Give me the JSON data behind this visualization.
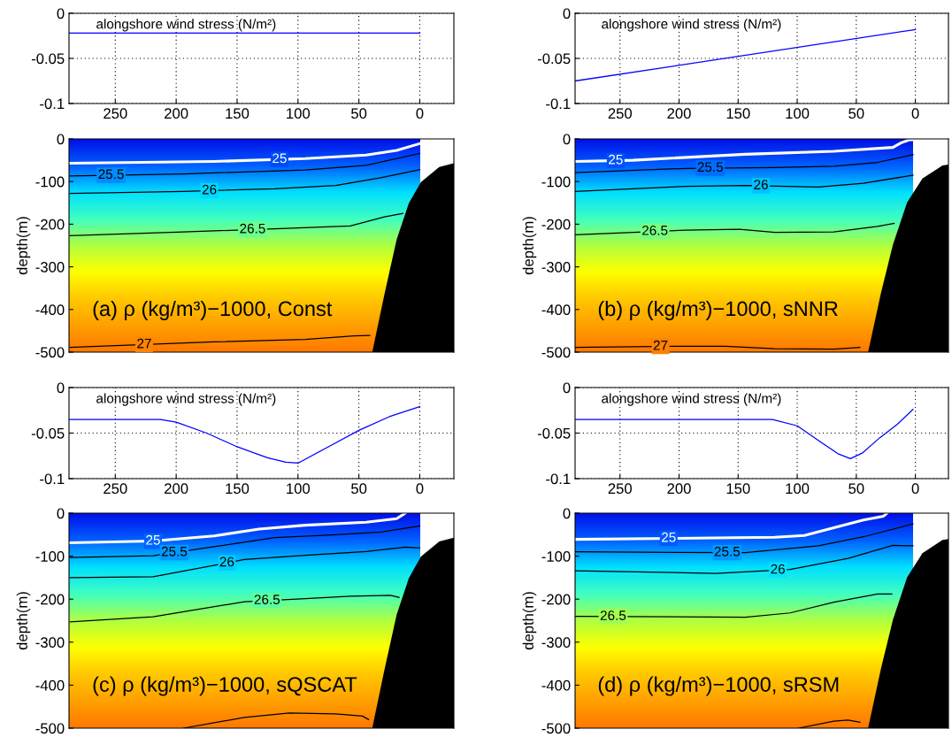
{
  "chart_data": [
    {
      "type": "line",
      "x": [
        288,
        0
      ],
      "xlim": [
        288,
        -28
      ],
      "ylim": [
        -0.1,
        0
      ],
      "xticks": [
        250,
        200,
        150,
        100,
        50,
        0
      ],
      "yticks": [
        -0.1,
        -0.05,
        0
      ],
      "grid": true,
      "annotations": [
        "alongshore wind stress (N/m²)"
      ],
      "series": [
        {
          "color": "#0000ff",
          "values": [
            -0.022,
            -0.022
          ]
        }
      ]
    },
    {
      "type": "line",
      "x": [
        288,
        0
      ],
      "xlim": [
        288,
        -28
      ],
      "ylim": [
        -0.1,
        0
      ],
      "xticks": [
        250,
        200,
        150,
        100,
        50,
        0
      ],
      "yticks": [
        -0.1,
        -0.05,
        0
      ],
      "grid": true,
      "annotations": [
        "alongshore wind stress (N/m²)"
      ],
      "series": [
        {
          "color": "#0000ff",
          "values": [
            -0.075,
            -0.018
          ]
        }
      ]
    },
    {
      "type": "line",
      "xlim": [
        288,
        -28
      ],
      "ylim": [
        -500,
        0
      ],
      "yticks": [
        -500,
        -400,
        -300,
        -200,
        -100,
        0
      ],
      "ylabel": "depth(m)",
      "tick_labels": "y",
      "annotations": [
        "(a) ρ (kg/m³)−1000, Const"
      ],
      "series": [
        {
          "name": "25",
          "color": "#ffffff",
          "x": [
            287,
            169,
            94,
            44,
            19,
            0
          ],
          "values": [
            -57,
            -53,
            -46,
            -38,
            -27,
            -11
          ]
        },
        {
          "name": "25.5",
          "color": "#000000",
          "x": [
            287,
            194,
            94,
            44,
            0
          ],
          "values": [
            -87,
            -82,
            -73,
            -62,
            -34
          ]
        },
        {
          "name": "26",
          "color": "#000000",
          "x": [
            287,
            194,
            119,
            69,
            32,
            0
          ],
          "values": [
            -128,
            -123,
            -117,
            -109,
            -91,
            -72
          ]
        },
        {
          "name": "26.5",
          "color": "#000000",
          "x": [
            287,
            194,
            119,
            57,
            29,
            14
          ],
          "values": [
            -227,
            -218,
            -211,
            -204,
            -183,
            -175
          ]
        },
        {
          "name": "27",
          "color": "#000000",
          "x": [
            287,
            169,
            94,
            54,
            41
          ],
          "values": [
            -489,
            -476,
            -470,
            -462,
            -461
          ]
        },
        {
          "type": "area",
          "color": "#000000",
          "x": [
            39,
            29,
            19,
            9,
            -1,
            -16,
            -28,
            -28
          ],
          "values": [
            -500,
            -364,
            -236,
            -151,
            -101,
            -66,
            -57,
            -500
          ]
        }
      ]
    },
    {
      "type": "line",
      "xlim": [
        288,
        -28
      ],
      "ylim": [
        -500,
        0
      ],
      "yticks": [
        -500,
        -400,
        -300,
        -200,
        -100,
        0
      ],
      "ylabel": "depth(m)",
      "tick_labels": "y",
      "annotations": [
        "(b) ρ (kg/m³)−1000, sNNR"
      ],
      "series": [
        {
          "name": "25",
          "color": "#ffffff",
          "x": [
            288,
            239,
            144,
            69,
            19,
            12,
            5,
            2
          ],
          "values": [
            -53,
            -50,
            -36,
            -29,
            -20,
            -9,
            -2,
            -2
          ]
        },
        {
          "name": "25.5",
          "color": "#000000",
          "x": [
            288,
            194,
            119,
            69,
            32,
            2
          ],
          "values": [
            -79,
            -69,
            -67,
            -64,
            -55,
            -37
          ]
        },
        {
          "name": "26",
          "color": "#000000",
          "x": [
            288,
            194,
            144,
            82,
            44,
            2
          ],
          "values": [
            -123,
            -111,
            -109,
            -113,
            -104,
            -85
          ]
        },
        {
          "name": "26.5",
          "color": "#000000",
          "x": [
            288,
            194,
            149,
            119,
            69,
            32,
            18
          ],
          "values": [
            -225,
            -214,
            -212,
            -219,
            -218,
            -205,
            -198
          ]
        },
        {
          "name": "27",
          "color": "#000000",
          "x": [
            288,
            194,
            161,
            119,
            69,
            47
          ],
          "values": [
            -489,
            -486,
            -486,
            -492,
            -493,
            -489
          ]
        },
        {
          "type": "area",
          "color": "#000000",
          "x": [
            40,
            29,
            19,
            7,
            -6,
            -23,
            -28,
            -28
          ],
          "values": [
            -500,
            -360,
            -248,
            -149,
            -93,
            -62,
            -60,
            -500
          ]
        }
      ]
    },
    {
      "type": "line",
      "x": [
        288,
        213,
        200,
        175,
        150,
        125,
        110,
        100,
        75,
        50,
        25,
        0
      ],
      "xlim": [
        288,
        -28
      ],
      "ylim": [
        -0.1,
        0
      ],
      "xticks": [
        250,
        200,
        150,
        100,
        50,
        0
      ],
      "yticks": [
        -0.1,
        -0.05,
        0
      ],
      "grid": true,
      "annotations": [
        "alongshore wind stress (N/m²)"
      ],
      "series": [
        {
          "color": "#0000ff",
          "values": [
            -0.035,
            -0.035,
            -0.038,
            -0.05,
            -0.065,
            -0.077,
            -0.082,
            -0.083,
            -0.065,
            -0.047,
            -0.032,
            -0.021
          ]
        }
      ]
    },
    {
      "type": "line",
      "x": [
        288,
        121,
        100,
        80,
        65,
        55,
        45,
        30,
        15,
        2
      ],
      "xlim": [
        288,
        -28
      ],
      "ylim": [
        -0.1,
        0
      ],
      "xticks": [
        250,
        200,
        150,
        100,
        50,
        0
      ],
      "yticks": [
        -0.1,
        -0.05,
        0
      ],
      "grid": true,
      "annotations": [
        "alongshore wind stress (N/m²)"
      ],
      "series": [
        {
          "color": "#0000ff",
          "values": [
            -0.035,
            -0.035,
            -0.042,
            -0.06,
            -0.073,
            -0.078,
            -0.072,
            -0.055,
            -0.04,
            -0.024
          ]
        }
      ]
    },
    {
      "type": "line",
      "xlim": [
        288,
        -28
      ],
      "ylim": [
        -500,
        0
      ],
      "yticks": [
        -500,
        -400,
        -300,
        -200,
        -100,
        0
      ],
      "ylabel": "depth(m)",
      "tick_labels": "y",
      "annotations": [
        "(c) ρ (kg/m³)−1000, sQSCAT"
      ],
      "series": [
        {
          "name": "25",
          "color": "#ffffff",
          "x": [
            287,
            219,
            169,
            132,
            94,
            44,
            19,
            12
          ],
          "values": [
            -69,
            -65,
            -53,
            -37,
            -28,
            -21,
            -13,
            0
          ]
        },
        {
          "name": "25.5",
          "color": "#000000",
          "x": [
            287,
            219,
            169,
            119,
            69,
            32,
            0
          ],
          "values": [
            -103,
            -99,
            -78,
            -57,
            -50,
            -44,
            -30
          ]
        },
        {
          "name": "26",
          "color": "#000000",
          "x": [
            287,
            219,
            144,
            94,
            44,
            12,
            0
          ],
          "values": [
            -150,
            -148,
            -108,
            -98,
            -89,
            -79,
            -81
          ]
        },
        {
          "name": "26.5",
          "color": "#000000",
          "x": [
            287,
            219,
            144,
            94,
            57,
            24,
            17
          ],
          "values": [
            -253,
            -241,
            -206,
            -199,
            -193,
            -191,
            -196
          ]
        },
        {
          "color": "#000000",
          "x": [
            194,
            144,
            107,
            69,
            47,
            42
          ],
          "values": [
            -500,
            -475,
            -465,
            -467,
            -472,
            -480
          ]
        },
        {
          "type": "area",
          "color": "#000000",
          "x": [
            39,
            29,
            19,
            9,
            -1,
            -16,
            -28,
            -28
          ],
          "values": [
            -500,
            -364,
            -236,
            -151,
            -101,
            -66,
            -57,
            -500
          ]
        }
      ]
    },
    {
      "type": "line",
      "xlim": [
        288,
        -28
      ],
      "ylim": [
        -500,
        0
      ],
      "yticks": [
        -500,
        -400,
        -300,
        -200,
        -100,
        0
      ],
      "ylabel": "depth(m)",
      "tick_labels": "y",
      "annotations": [
        "(d) ρ (kg/m³)−1000, sRSM"
      ],
      "series": [
        {
          "name": "25",
          "color": "#ffffff",
          "x": [
            288,
            119,
            94,
            69,
            44,
            27,
            24
          ],
          "values": [
            -61,
            -56,
            -52,
            -34,
            -16,
            -7,
            0
          ]
        },
        {
          "name": "25.5",
          "color": "#000000",
          "x": [
            288,
            144,
            82,
            44,
            2
          ],
          "values": [
            -90,
            -92,
            -76,
            -55,
            -25
          ]
        },
        {
          "name": "26",
          "color": "#000000",
          "x": [
            288,
            169,
            106,
            57,
            19,
            2
          ],
          "values": [
            -134,
            -140,
            -131,
            -105,
            -75,
            -76
          ]
        },
        {
          "name": "26.5",
          "color": "#000000",
          "x": [
            288,
            144,
            106,
            69,
            32,
            20
          ],
          "values": [
            -240,
            -242,
            -232,
            -207,
            -188,
            -188
          ]
        },
        {
          "color": "#000000",
          "x": [
            99,
            69,
            57,
            47
          ],
          "values": [
            -500,
            -484,
            -481,
            -486
          ]
        },
        {
          "type": "area",
          "color": "#000000",
          "x": [
            40,
            29,
            19,
            7,
            -6,
            -23,
            -28,
            -28
          ],
          "values": [
            -500,
            -360,
            -248,
            -149,
            -93,
            -62,
            -60,
            -500
          ]
        }
      ]
    }
  ]
}
